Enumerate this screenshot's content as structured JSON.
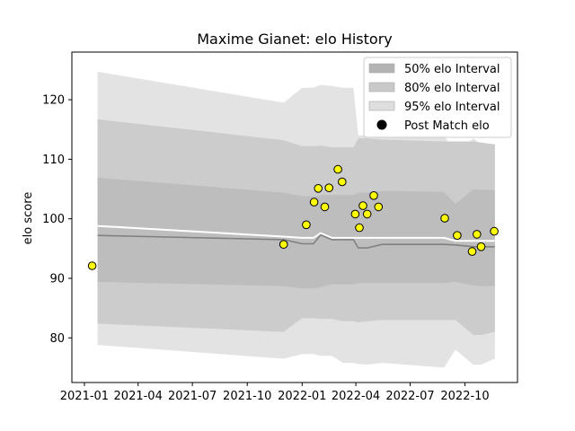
{
  "chart_data": {
    "type": "line",
    "title": "Maxime Gianet: elo History",
    "xlabel": "",
    "ylabel": "elo score",
    "xlim": [
      "2020-12-11",
      "2022-12-28"
    ],
    "ylim": [
      72.5,
      128.0
    ],
    "x_ticks": [
      "2021-01-01",
      "2021-04-01",
      "2021-07-01",
      "2021-10-01",
      "2022-01-01",
      "2022-04-01",
      "2022-07-01",
      "2022-10-01"
    ],
    "x_tick_labels": [
      "2021-01",
      "2021-04",
      "2021-07",
      "2021-10",
      "2022-01",
      "2022-04",
      "2022-07",
      "2022-10"
    ],
    "y_ticks": [
      80,
      90,
      100,
      110,
      120
    ],
    "y_tick_labels": [
      "80",
      "90",
      "100",
      "110",
      "120"
    ],
    "grid": false,
    "legend": {
      "placement": "top-right",
      "entries": [
        "50% elo Interval",
        "80% elo Interval",
        "95% elo Interval",
        "Post Match elo"
      ]
    },
    "series": [
      {
        "name": "95% elo Interval",
        "kind": "band",
        "color": "#e3e3e3",
        "x": [
          "2021-01-23",
          "2021-12-01",
          "2022-01-01",
          "2022-01-20",
          "2022-02-01",
          "2022-02-20",
          "2022-03-10",
          "2022-03-28",
          "2022-04-05",
          "2022-04-20",
          "2022-05-15",
          "2022-08-27",
          "2022-09-15",
          "2022-10-15",
          "2022-10-28",
          "2022-11-20"
        ],
        "upper": [
          124.7,
          119.5,
          122.0,
          122.0,
          122.5,
          122.3,
          122.0,
          122.0,
          114.0,
          114.0,
          114.0,
          114.0,
          111.0,
          113.5,
          112.5,
          112.5
        ],
        "lower": [
          78.8,
          76.5,
          77.3,
          77.3,
          77.0,
          77.0,
          75.8,
          75.8,
          75.6,
          75.5,
          75.8,
          75.0,
          78.0,
          75.5,
          75.5,
          76.5
        ]
      },
      {
        "name": "80% elo Interval",
        "kind": "band",
        "color": "#cccccc",
        "x": [
          "2021-01-23",
          "2021-12-01",
          "2022-01-01",
          "2022-01-20",
          "2022-02-01",
          "2022-02-20",
          "2022-03-10",
          "2022-03-28",
          "2022-04-05",
          "2022-04-20",
          "2022-05-15",
          "2022-08-27",
          "2022-09-15",
          "2022-10-15",
          "2022-10-28",
          "2022-11-20"
        ],
        "upper": [
          116.7,
          113.2,
          112.2,
          112.2,
          112.3,
          112.0,
          112.0,
          112.0,
          113.5,
          113.5,
          113.3,
          113.0,
          113.0,
          113.0,
          112.8,
          112.5
        ],
        "lower": [
          82.4,
          81.0,
          83.3,
          83.3,
          83.2,
          83.2,
          82.8,
          82.8,
          82.6,
          82.8,
          83.0,
          83.0,
          83.0,
          80.5,
          80.5,
          81.0
        ]
      },
      {
        "name": "50% elo Interval",
        "kind": "band",
        "color": "#bdbdbd",
        "x": [
          "2021-01-23",
          "2021-12-01",
          "2022-01-01",
          "2022-01-20",
          "2022-02-01",
          "2022-02-20",
          "2022-03-10",
          "2022-03-28",
          "2022-04-05",
          "2022-04-20",
          "2022-05-15",
          "2022-08-27",
          "2022-09-15",
          "2022-10-15",
          "2022-10-28",
          "2022-11-20"
        ],
        "upper": [
          106.9,
          104.4,
          103.8,
          103.8,
          104.0,
          104.0,
          104.0,
          104.0,
          104.4,
          104.4,
          104.7,
          104.5,
          102.5,
          105.0,
          104.9,
          104.8
        ],
        "lower": [
          89.4,
          88.7,
          88.3,
          88.3,
          88.5,
          89.0,
          89.0,
          89.0,
          89.2,
          89.2,
          89.2,
          89.2,
          89.4,
          88.8,
          88.7,
          88.7
        ]
      },
      {
        "name": "median",
        "kind": "line",
        "color": "#808080",
        "x": [
          "2021-01-23",
          "2021-12-01",
          "2022-01-01",
          "2022-01-20",
          "2022-02-01",
          "2022-02-20",
          "2022-03-10",
          "2022-03-28",
          "2022-04-05",
          "2022-04-20",
          "2022-05-15",
          "2022-08-27",
          "2022-09-15",
          "2022-10-15",
          "2022-10-28",
          "2022-11-20"
        ],
        "y": [
          97.2,
          96.5,
          95.8,
          95.8,
          97.3,
          96.5,
          96.5,
          96.5,
          95.1,
          95.1,
          95.7,
          95.7,
          95.6,
          95.3,
          95.3,
          95.3
        ]
      },
      {
        "name": "mean",
        "kind": "line",
        "color": "#ffffff",
        "x": [
          "2021-01-23",
          "2021-12-01",
          "2022-01-01",
          "2022-01-20",
          "2022-02-01",
          "2022-02-20",
          "2022-03-10",
          "2022-03-28",
          "2022-04-05",
          "2022-04-20",
          "2022-05-15",
          "2022-08-27",
          "2022-09-15",
          "2022-10-15",
          "2022-10-28",
          "2022-11-20"
        ],
        "y": [
          98.8,
          97.0,
          96.8,
          96.8,
          97.6,
          96.8,
          96.8,
          96.8,
          96.8,
          96.8,
          96.8,
          96.8,
          96.3,
          96.3,
          96.3,
          96.3
        ]
      },
      {
        "name": "Post Match elo",
        "kind": "scatter",
        "color": "#ffff00",
        "x": [
          "2021-01-14",
          "2021-12-01",
          "2022-01-08",
          "2022-01-21",
          "2022-01-28",
          "2022-02-08",
          "2022-02-15",
          "2022-03-02",
          "2022-03-09",
          "2022-03-31",
          "2022-04-07",
          "2022-04-13",
          "2022-04-20",
          "2022-05-01",
          "2022-05-09",
          "2022-08-28",
          "2022-09-18",
          "2022-10-13",
          "2022-10-21",
          "2022-10-28",
          "2022-11-19"
        ],
        "y": [
          92.1,
          95.7,
          99.0,
          102.8,
          105.1,
          102.0,
          105.2,
          108.3,
          106.2,
          100.8,
          98.5,
          102.2,
          100.8,
          103.9,
          102.0,
          100.1,
          97.2,
          94.5,
          97.4,
          95.3,
          97.9
        ]
      }
    ]
  }
}
